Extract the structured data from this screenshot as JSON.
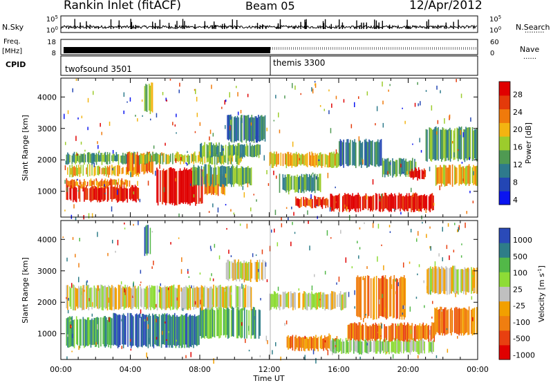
{
  "header": {
    "title": "Rankin Inlet (fitACF)",
    "beam": "Beam 05",
    "date": "12/Apr/2012"
  },
  "panels": {
    "nsky_label": "N.Sky",
    "nsearch_label": "N.Search",
    "freq_label": "Freq.",
    "freq_unit": "[MHz]",
    "nave_label": "Nave",
    "cpid_label": "CPID",
    "nsky_ticks": [
      "10^5",
      "10^0"
    ],
    "nsky_right_ticks": [
      "10^5",
      "10^0"
    ],
    "freq_ticks": [
      "18",
      "8"
    ],
    "nave_ticks": [
      "60",
      "0"
    ],
    "modes": [
      {
        "name": "twofsound 3501",
        "start_hour": 0
      },
      {
        "name": "themis 3300",
        "start_hour": 12
      }
    ]
  },
  "colors": {
    "power": [
      "#0a14f0",
      "#2346b4",
      "#2e7a8c",
      "#4f9a52",
      "#9ccc2c",
      "#f3b411",
      "#f07a0b",
      "#e43a0a",
      "#e00000"
    ],
    "velocity": [
      "#2a4ab8",
      "#2e7d88",
      "#52b848",
      "#8edc36",
      "#c0c0c0",
      "#f2a000",
      "#f07e10",
      "#e84010",
      "#e00000"
    ]
  },
  "chart_data": [
    {
      "type": "heatmap",
      "name": "power",
      "xlabel": "Time UT",
      "ylabel": "Slant Range [km]",
      "x_ticks": [
        "00:00",
        "04:00",
        "08:00",
        "12:00",
        "16:00",
        "20:00",
        "00:00"
      ],
      "xlim": [
        0,
        24
      ],
      "ylim": [
        180,
        4600
      ],
      "y_ticks": [
        1000,
        2000,
        3000,
        4000
      ],
      "colorbar_label": "Power [dB]",
      "colorbar_ticks": [
        "28",
        "24",
        "20",
        "16",
        "12",
        "8",
        "4"
      ],
      "bands": [
        {
          "t0": 0.3,
          "t1": 4.5,
          "r0": 700,
          "r1": 1150,
          "level": 8
        },
        {
          "t0": 0.3,
          "t1": 4.0,
          "r0": 1150,
          "r1": 1350,
          "level": 6
        },
        {
          "t0": 0.3,
          "t1": 4.5,
          "r0": 1500,
          "r1": 1800,
          "level": 5
        },
        {
          "t0": 0.3,
          "t1": 4.5,
          "r0": 1900,
          "r1": 2200,
          "level": 3
        },
        {
          "t0": 3.8,
          "t1": 5.3,
          "r0": 1600,
          "r1": 2200,
          "level": 6
        },
        {
          "t0": 5.5,
          "t1": 8.2,
          "r0": 600,
          "r1": 1700,
          "level": 8
        },
        {
          "t0": 8.2,
          "t1": 9.5,
          "r0": 900,
          "r1": 1500,
          "level": 6
        },
        {
          "t0": 4.5,
          "t1": 10.5,
          "r0": 1900,
          "r1": 2200,
          "level": 4
        },
        {
          "t0": 7.5,
          "t1": 11.0,
          "r0": 1200,
          "r1": 1800,
          "level": 3
        },
        {
          "t0": 9.5,
          "t1": 11.8,
          "r0": 2600,
          "r1": 3400,
          "level": 2
        },
        {
          "t0": 8.0,
          "t1": 11.5,
          "r0": 2100,
          "r1": 2500,
          "level": 3
        },
        {
          "t0": 12.0,
          "t1": 16.0,
          "r0": 1800,
          "r1": 2200,
          "level": 5
        },
        {
          "t0": 12.5,
          "t1": 15.0,
          "r0": 1000,
          "r1": 1500,
          "level": 3
        },
        {
          "t0": 13.5,
          "t1": 15.5,
          "r0": 500,
          "r1": 800,
          "level": 7
        },
        {
          "t0": 15.5,
          "t1": 21.5,
          "r0": 400,
          "r1": 900,
          "level": 8
        },
        {
          "t0": 16.0,
          "t1": 18.5,
          "r0": 1800,
          "r1": 2600,
          "level": 2
        },
        {
          "t0": 18.5,
          "t1": 20.5,
          "r0": 1500,
          "r1": 2000,
          "level": 3
        },
        {
          "t0": 20.0,
          "t1": 21.0,
          "r0": 1400,
          "r1": 1700,
          "level": 8
        },
        {
          "t0": 21.0,
          "t1": 24.0,
          "r0": 2000,
          "r1": 3000,
          "level": 3
        },
        {
          "t0": 21.5,
          "t1": 24.0,
          "r0": 1200,
          "r1": 1800,
          "level": 5
        },
        {
          "t0": 4.8,
          "t1": 5.3,
          "r0": 3500,
          "r1": 4400,
          "level": 4
        }
      ]
    },
    {
      "type": "heatmap",
      "name": "velocity",
      "xlabel": "Time UT",
      "ylabel": "Slant Range [km]",
      "x_ticks": [
        "00:00",
        "04:00",
        "08:00",
        "12:00",
        "16:00",
        "20:00",
        "00:00"
      ],
      "xlim": [
        0,
        24
      ],
      "ylim": [
        180,
        4600
      ],
      "y_ticks": [
        1000,
        2000,
        3000,
        4000
      ],
      "colorbar_label": "Velocity [m s^-1]",
      "colorbar_ticks": [
        "1000",
        "500",
        "100",
        "25",
        "-25",
        "-100",
        "-500",
        "-1000"
      ],
      "bands": [
        {
          "t0": 0.3,
          "t1": 3.0,
          "r0": 600,
          "r1": 1500,
          "level": 2
        },
        {
          "t0": 3.0,
          "t1": 5.0,
          "r0": 600,
          "r1": 1600,
          "level": 0
        },
        {
          "t0": 5.0,
          "t1": 8.0,
          "r0": 600,
          "r1": 1600,
          "level": 1
        },
        {
          "t0": 8.0,
          "t1": 11.5,
          "r0": 900,
          "r1": 1800,
          "level": 2
        },
        {
          "t0": 0.3,
          "t1": 11.0,
          "r0": 1800,
          "r1": 2500,
          "level": 4
        },
        {
          "t0": 9.5,
          "t1": 11.8,
          "r0": 2700,
          "r1": 3300,
          "level": 4
        },
        {
          "t0": 12.0,
          "t1": 16.5,
          "r0": 1800,
          "r1": 2300,
          "level": 4
        },
        {
          "t0": 13.0,
          "t1": 16.0,
          "r0": 500,
          "r1": 900,
          "level": 6
        },
        {
          "t0": 15.5,
          "t1": 21.5,
          "r0": 400,
          "r1": 800,
          "level": 3
        },
        {
          "t0": 16.5,
          "t1": 21.5,
          "r0": 800,
          "r1": 1300,
          "level": 6
        },
        {
          "t0": 17.0,
          "t1": 20.0,
          "r0": 1500,
          "r1": 2800,
          "level": 6
        },
        {
          "t0": 21.5,
          "t1": 24.0,
          "r0": 1000,
          "r1": 1800,
          "level": 6
        },
        {
          "t0": 21.0,
          "t1": 24.0,
          "r0": 2300,
          "r1": 3100,
          "level": 4
        },
        {
          "t0": 4.8,
          "t1": 5.3,
          "r0": 3500,
          "r1": 4400,
          "level": 1
        }
      ]
    }
  ]
}
